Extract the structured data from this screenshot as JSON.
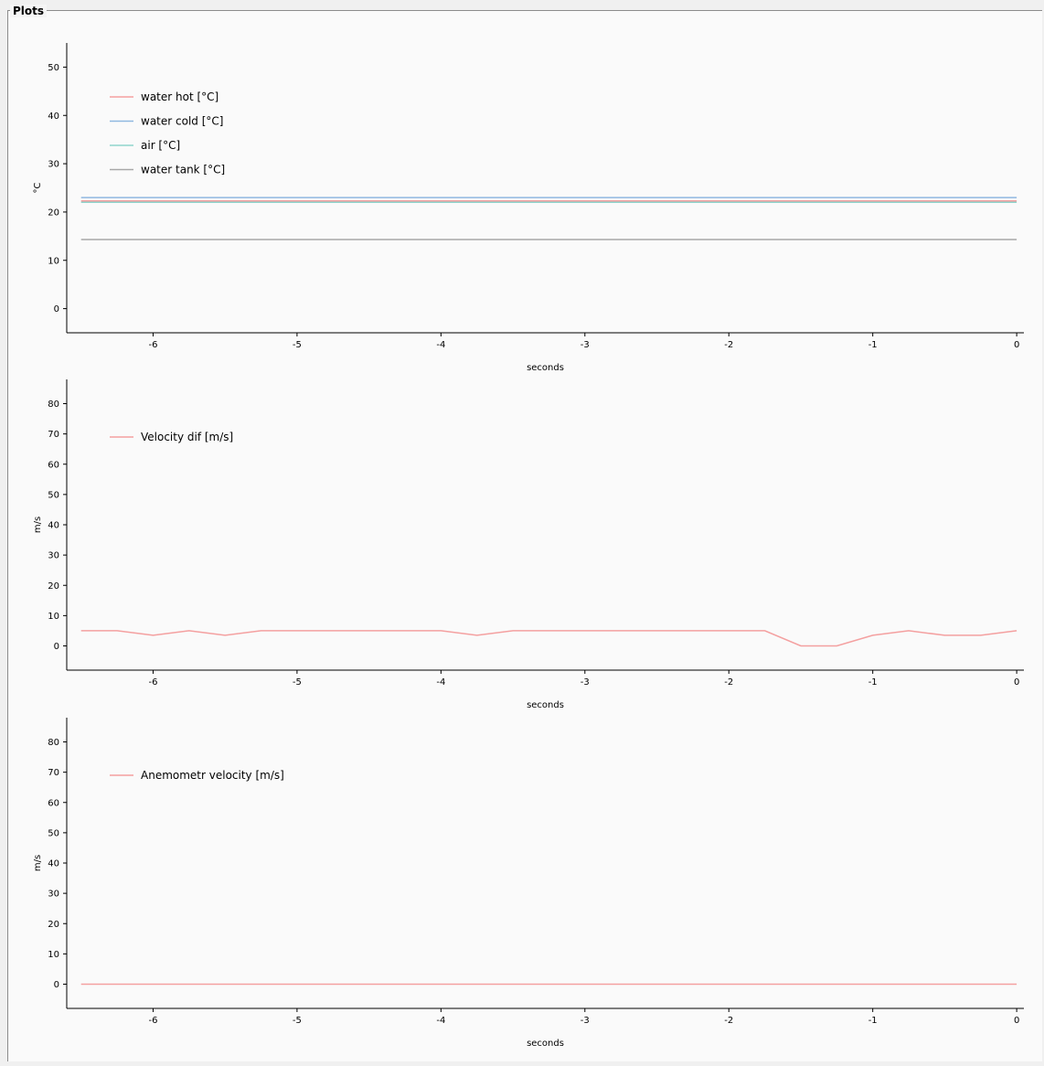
{
  "groupbox": {
    "title": "Plots"
  },
  "chart_data": [
    {
      "type": "line",
      "xlabel": "seconds",
      "ylabel": "°C",
      "xlim": [
        -6.6,
        0.05
      ],
      "ylim": [
        -5,
        55
      ],
      "xticks": [
        -6,
        -5,
        -4,
        -3,
        -2,
        -1,
        0
      ],
      "yticks": [
        0,
        10,
        20,
        30,
        40,
        50
      ],
      "legend_position": "top-left",
      "series": [
        {
          "name": "water hot [°C]",
          "color": "#f4a0a0",
          "x": [
            -6.5,
            0
          ],
          "values": [
            22.3,
            22.3
          ]
        },
        {
          "name": "water cold [°C]",
          "color": "#8fb8e0",
          "x": [
            -6.5,
            0
          ],
          "values": [
            23.0,
            23.0
          ]
        },
        {
          "name": "air [°C]",
          "color": "#8fd4cc",
          "x": [
            -6.5,
            0
          ],
          "values": [
            22.0,
            22.0
          ]
        },
        {
          "name": "water tank [°C]",
          "color": "#a8a8a8",
          "x": [
            -6.5,
            0
          ],
          "values": [
            14.3,
            14.3
          ]
        }
      ]
    },
    {
      "type": "line",
      "xlabel": "seconds",
      "ylabel": "m/s",
      "xlim": [
        -6.6,
        0.05
      ],
      "ylim": [
        -8,
        88
      ],
      "xticks": [
        -6,
        -5,
        -4,
        -3,
        -2,
        -1,
        0
      ],
      "yticks": [
        0,
        10,
        20,
        30,
        40,
        50,
        60,
        70,
        80
      ],
      "legend_position": "top-left",
      "series": [
        {
          "name": "Velocity dif [m/s]",
          "color": "#f4a0a0",
          "x": [
            -6.5,
            -6.25,
            -6.0,
            -5.75,
            -5.5,
            -5.25,
            -5.0,
            -4.75,
            -4.5,
            -4.25,
            -4.0,
            -3.75,
            -3.5,
            -3.25,
            -3.0,
            -2.75,
            -2.5,
            -2.25,
            -2.0,
            -1.75,
            -1.5,
            -1.25,
            -1.0,
            -0.75,
            -0.5,
            -0.25,
            0.0
          ],
          "values": [
            5,
            5,
            3.5,
            5,
            3.5,
            5,
            5,
            5,
            5,
            5,
            5,
            3.5,
            5,
            5,
            5,
            5,
            5,
            5,
            5,
            5,
            0,
            0,
            3.5,
            5,
            3.5,
            3.5,
            5
          ]
        }
      ]
    },
    {
      "type": "line",
      "xlabel": "seconds",
      "ylabel": "m/s",
      "xlim": [
        -6.6,
        0.05
      ],
      "ylim": [
        -8,
        88
      ],
      "xticks": [
        -6,
        -5,
        -4,
        -3,
        -2,
        -1,
        0
      ],
      "yticks": [
        0,
        10,
        20,
        30,
        40,
        50,
        60,
        70,
        80
      ],
      "legend_position": "top-left",
      "series": [
        {
          "name": "Anemometr velocity [m/s]",
          "color": "#f4a0a0",
          "x": [
            -6.5,
            0
          ],
          "values": [
            0,
            0
          ]
        }
      ]
    }
  ]
}
